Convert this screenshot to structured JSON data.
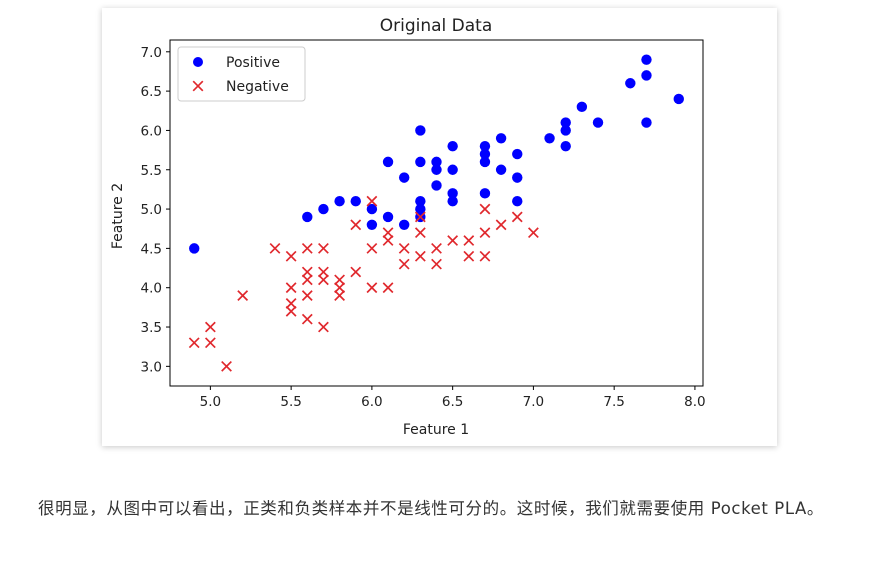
{
  "chart_data": {
    "type": "scatter",
    "title": "Original Data",
    "xlabel": "Feature 1",
    "ylabel": "Feature 2",
    "xlim": [
      4.75,
      8.05
    ],
    "ylim": [
      2.75,
      7.15
    ],
    "xticks": [
      "5.0",
      "5.5",
      "6.0",
      "6.5",
      "7.0",
      "7.5",
      "8.0"
    ],
    "yticks": [
      "3.0",
      "3.5",
      "4.0",
      "4.5",
      "5.0",
      "5.5",
      "6.0",
      "6.5",
      "7.0"
    ],
    "grid": false,
    "legend_position": "upper-left",
    "series": [
      {
        "name": "Positive",
        "marker": "circle",
        "color": "#0000ff",
        "points": [
          [
            4.9,
            4.5
          ],
          [
            5.6,
            4.9
          ],
          [
            5.7,
            5.0
          ],
          [
            5.8,
            5.1
          ],
          [
            5.9,
            5.1
          ],
          [
            6.0,
            5.0
          ],
          [
            6.0,
            4.8
          ],
          [
            6.1,
            4.9
          ],
          [
            6.2,
            4.8
          ],
          [
            6.1,
            5.6
          ],
          [
            6.2,
            5.4
          ],
          [
            6.3,
            5.1
          ],
          [
            6.3,
            5.0
          ],
          [
            6.3,
            4.9
          ],
          [
            6.3,
            5.6
          ],
          [
            6.3,
            6.0
          ],
          [
            6.4,
            5.6
          ],
          [
            6.4,
            5.5
          ],
          [
            6.4,
            5.3
          ],
          [
            6.5,
            5.8
          ],
          [
            6.5,
            5.5
          ],
          [
            6.5,
            5.2
          ],
          [
            6.5,
            5.1
          ],
          [
            6.7,
            5.8
          ],
          [
            6.7,
            5.7
          ],
          [
            6.7,
            5.6
          ],
          [
            6.7,
            5.2
          ],
          [
            6.8,
            5.9
          ],
          [
            6.8,
            5.5
          ],
          [
            6.9,
            5.7
          ],
          [
            6.9,
            5.4
          ],
          [
            6.9,
            5.1
          ],
          [
            7.1,
            5.9
          ],
          [
            7.2,
            6.1
          ],
          [
            7.2,
            6.0
          ],
          [
            7.2,
            5.8
          ],
          [
            7.3,
            6.3
          ],
          [
            7.4,
            6.1
          ],
          [
            7.6,
            6.6
          ],
          [
            7.7,
            6.9
          ],
          [
            7.7,
            6.7
          ],
          [
            7.7,
            6.1
          ],
          [
            7.9,
            6.4
          ]
        ]
      },
      {
        "name": "Negative",
        "marker": "x",
        "color": "#e0282d",
        "points": [
          [
            4.9,
            3.3
          ],
          [
            5.0,
            3.5
          ],
          [
            5.0,
            3.3
          ],
          [
            5.1,
            3.0
          ],
          [
            5.2,
            3.9
          ],
          [
            5.4,
            4.5
          ],
          [
            5.5,
            4.4
          ],
          [
            5.5,
            4.0
          ],
          [
            5.5,
            3.8
          ],
          [
            5.5,
            3.7
          ],
          [
            5.6,
            4.5
          ],
          [
            5.6,
            4.2
          ],
          [
            5.6,
            4.1
          ],
          [
            5.6,
            3.9
          ],
          [
            5.6,
            3.6
          ],
          [
            5.7,
            4.5
          ],
          [
            5.7,
            4.2
          ],
          [
            5.7,
            4.1
          ],
          [
            5.7,
            3.5
          ],
          [
            5.8,
            4.1
          ],
          [
            5.8,
            4.0
          ],
          [
            5.8,
            3.9
          ],
          [
            5.9,
            4.8
          ],
          [
            5.9,
            4.2
          ],
          [
            6.0,
            5.1
          ],
          [
            6.0,
            4.5
          ],
          [
            6.0,
            4.0
          ],
          [
            6.1,
            4.7
          ],
          [
            6.1,
            4.6
          ],
          [
            6.1,
            4.0
          ],
          [
            6.2,
            4.5
          ],
          [
            6.2,
            4.3
          ],
          [
            6.3,
            4.9
          ],
          [
            6.3,
            4.7
          ],
          [
            6.3,
            4.4
          ],
          [
            6.4,
            4.5
          ],
          [
            6.4,
            4.3
          ],
          [
            6.5,
            4.6
          ],
          [
            6.6,
            4.6
          ],
          [
            6.6,
            4.4
          ],
          [
            6.7,
            5.0
          ],
          [
            6.7,
            4.7
          ],
          [
            6.7,
            4.4
          ],
          [
            6.8,
            4.8
          ],
          [
            6.9,
            4.9
          ],
          [
            7.0,
            4.7
          ]
        ]
      }
    ]
  },
  "article": {
    "paragraph": "很明显，从图中可以看出，正类和负类样本并不是线性可分的。这时候，我们就需要使用 Pocket PLA。"
  }
}
